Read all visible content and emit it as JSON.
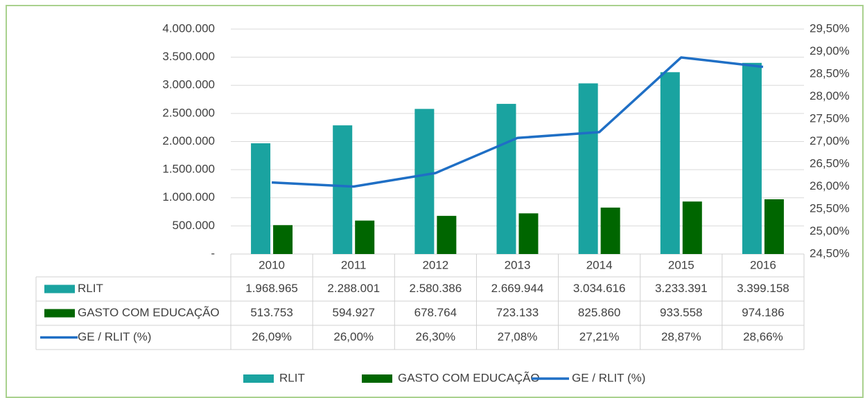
{
  "chart_data": {
    "type": "bar",
    "categories": [
      "2010",
      "2011",
      "2012",
      "2013",
      "2014",
      "2015",
      "2016"
    ],
    "series": [
      {
        "name": "RLIT",
        "type": "bar",
        "color": "#1aa3a0",
        "values": [
          1968965,
          2288001,
          2580386,
          2669944,
          3034616,
          3233391,
          3399158
        ],
        "value_labels": [
          "1.968.965",
          "2.288.001",
          "2.580.386",
          "2.669.944",
          "3.034.616",
          "3.233.391",
          "3.399.158"
        ]
      },
      {
        "name": "GASTO COM EDUCAÇÃO",
        "type": "bar",
        "color": "#006600",
        "values": [
          513753,
          594927,
          678764,
          723133,
          825860,
          933558,
          974186
        ],
        "value_labels": [
          "513.753",
          "594.927",
          "678.764",
          "723.133",
          "825.860",
          "933.558",
          "974.186"
        ]
      },
      {
        "name": "GE / RLIT (%)",
        "type": "line",
        "axis": "y2",
        "color": "#1f6fc5",
        "values": [
          26.09,
          26.0,
          26.3,
          27.08,
          27.21,
          28.87,
          28.66
        ],
        "value_labels": [
          "26,09%",
          "26,00%",
          "26,30%",
          "27,08%",
          "27,21%",
          "28,87%",
          "28,66%"
        ]
      }
    ],
    "ylim": [
      0,
      4000000
    ],
    "yticks": [
      {
        "value": 0,
        "label": "-"
      },
      {
        "value": 500000,
        "label": "500.000"
      },
      {
        "value": 1000000,
        "label": "1.000.000"
      },
      {
        "value": 1500000,
        "label": "1.500.000"
      },
      {
        "value": 2000000,
        "label": "2.000.000"
      },
      {
        "value": 2500000,
        "label": "2.500.000"
      },
      {
        "value": 3000000,
        "label": "3.000.000"
      },
      {
        "value": 3500000,
        "label": "3.500.000"
      },
      {
        "value": 4000000,
        "label": "4.000.000"
      }
    ],
    "y2lim": [
      24.5,
      29.5
    ],
    "y2ticks": [
      {
        "value": 24.5,
        "label": "24,50%"
      },
      {
        "value": 25.0,
        "label": "25,00%"
      },
      {
        "value": 25.5,
        "label": "25,50%"
      },
      {
        "value": 26.0,
        "label": "26,00%"
      },
      {
        "value": 26.5,
        "label": "26,50%"
      },
      {
        "value": 27.0,
        "label": "27,00%"
      },
      {
        "value": 27.5,
        "label": "27,50%"
      },
      {
        "value": 28.0,
        "label": "28,00%"
      },
      {
        "value": 28.5,
        "label": "28,50%"
      },
      {
        "value": 29.0,
        "label": "29,00%"
      },
      {
        "value": 29.5,
        "label": "29,50%"
      }
    ],
    "grid": true,
    "legend": "bottom"
  }
}
